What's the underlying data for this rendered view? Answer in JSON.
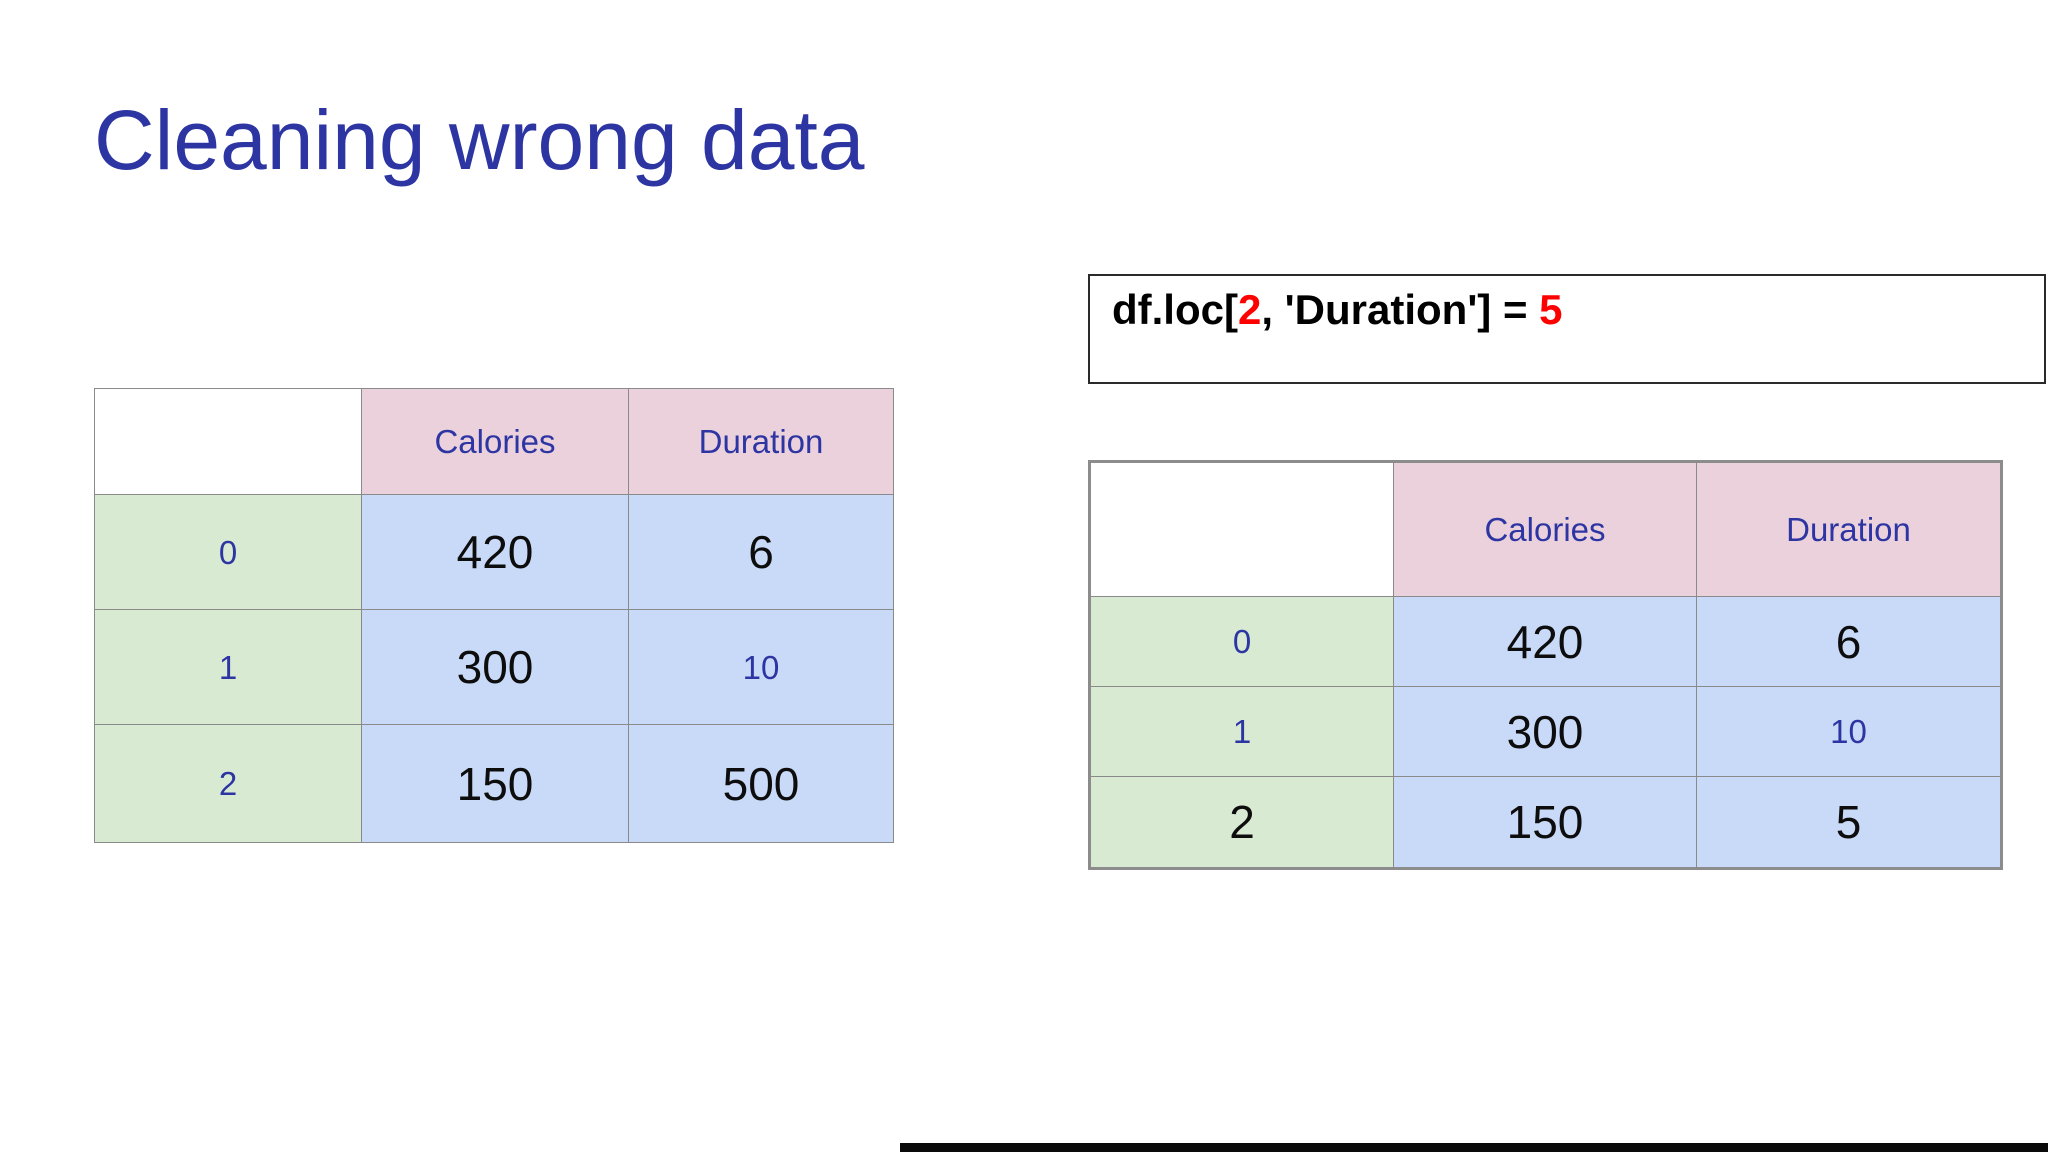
{
  "title": "Cleaning wrong data",
  "code": {
    "prefix": "df.loc[",
    "row_arg": "2",
    "middle": ", 'Duration'] = ",
    "value_arg": "5"
  },
  "left_table": {
    "col_headers": [
      "Calories",
      "Duration"
    ],
    "rows": [
      {
        "index": "0",
        "calories": "420",
        "duration": "6"
      },
      {
        "index": "1",
        "calories": "300",
        "duration": "10"
      },
      {
        "index": "2",
        "calories": "150",
        "duration": "500"
      }
    ]
  },
  "right_table": {
    "col_headers": [
      "Calories",
      "Duration"
    ],
    "rows": [
      {
        "index": "0",
        "calories": "420",
        "duration": "6"
      },
      {
        "index": "1",
        "calories": "300",
        "duration": "10"
      },
      {
        "index": "2",
        "calories": "150",
        "duration": "5"
      }
    ]
  },
  "colors": {
    "title_blue": "#2d35a3",
    "header_pink": "#ead1dc",
    "index_green": "#d9ead3",
    "cell_blue": "#c9daf8",
    "accent_red": "#ff0000"
  }
}
